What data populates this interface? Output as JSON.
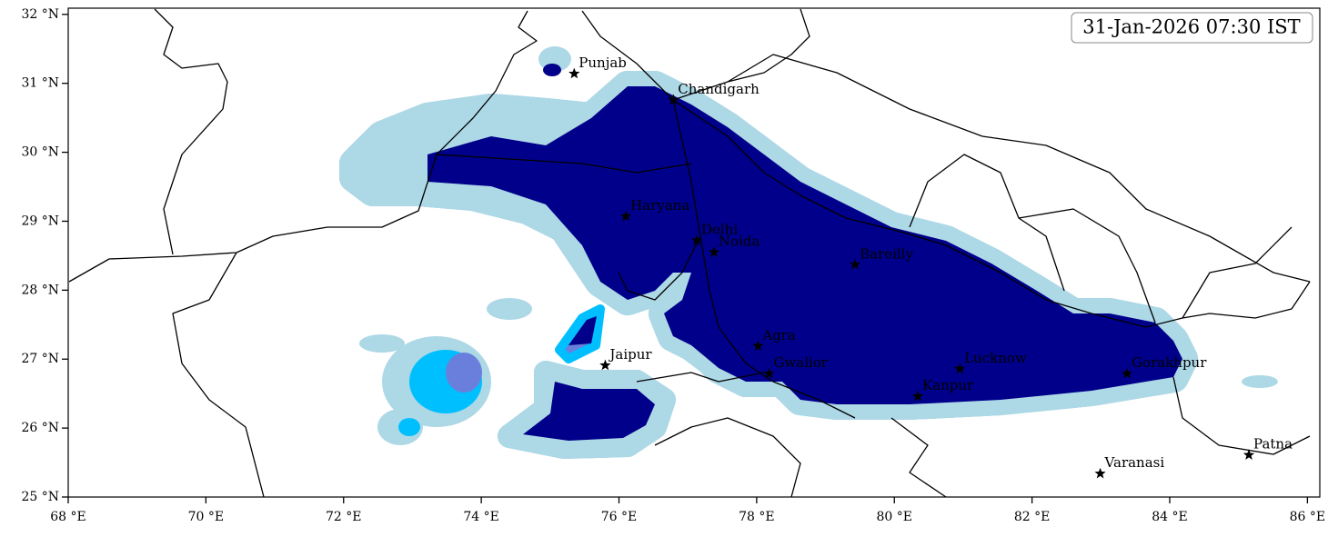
{
  "map": {
    "timestamp": "31-Jan-2026 07:30 IST",
    "xlim": [
      68,
      86.18
    ],
    "ylim": [
      25,
      32.09
    ],
    "xticks": [
      {
        "value": 68,
        "label": "68 °E"
      },
      {
        "value": 70,
        "label": "70 °E"
      },
      {
        "value": 72,
        "label": "72 °E"
      },
      {
        "value": 74,
        "label": "74 °E"
      },
      {
        "value": 76,
        "label": "76 °E"
      },
      {
        "value": 78,
        "label": "78 °E"
      },
      {
        "value": 80,
        "label": "80 °E"
      },
      {
        "value": 82,
        "label": "82 °E"
      },
      {
        "value": 84,
        "label": "84 °E"
      },
      {
        "value": 86,
        "label": "86 °E"
      }
    ],
    "yticks": [
      {
        "value": 25,
        "label": "25 °N"
      },
      {
        "value": 26,
        "label": "26 °N"
      },
      {
        "value": 27,
        "label": "27 °N"
      },
      {
        "value": 28,
        "label": "28 °N"
      },
      {
        "value": 29,
        "label": "29 °N"
      },
      {
        "value": 30,
        "label": "30 °N"
      },
      {
        "value": 31,
        "label": "31 °N"
      },
      {
        "value": 32,
        "label": "32 °N"
      }
    ],
    "places": [
      {
        "name": "Punjab",
        "lon": 75.35,
        "lat": 31.14
      },
      {
        "name": "Chandigarh",
        "lon": 76.79,
        "lat": 30.76
      },
      {
        "name": "Haryana",
        "lon": 76.1,
        "lat": 29.07
      },
      {
        "name": "Delhi",
        "lon": 77.13,
        "lat": 28.72
      },
      {
        "name": "Noida",
        "lon": 77.38,
        "lat": 28.55
      },
      {
        "name": "Bareilly",
        "lon": 79.43,
        "lat": 28.37
      },
      {
        "name": "Agra",
        "lon": 78.02,
        "lat": 27.19
      },
      {
        "name": "Jaipur",
        "lon": 75.8,
        "lat": 26.91
      },
      {
        "name": "Gwalior",
        "lon": 78.18,
        "lat": 26.79
      },
      {
        "name": "Lucknow",
        "lon": 80.95,
        "lat": 26.86
      },
      {
        "name": "Kanpur",
        "lon": 80.34,
        "lat": 26.46
      },
      {
        "name": "Gorakhpur",
        "lon": 83.38,
        "lat": 26.79
      },
      {
        "name": "Varanasi",
        "lon": 82.99,
        "lat": 25.34
      },
      {
        "name": "Patna",
        "lon": 85.15,
        "lat": 25.61
      }
    ]
  }
}
